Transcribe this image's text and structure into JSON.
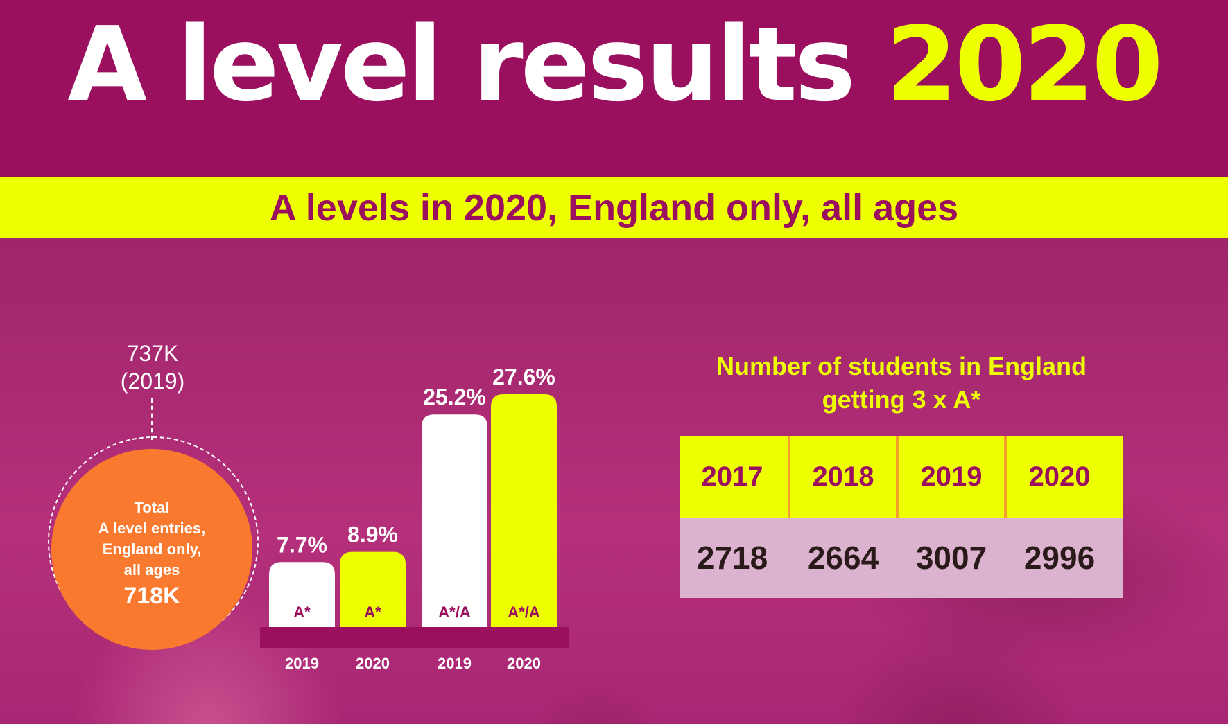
{
  "header": {
    "title_main": "A level results",
    "title_year": "2020",
    "subtitle": "A levels in 2020, England only, all ages"
  },
  "entries": {
    "previous_value": "737K",
    "previous_year": "(2019)",
    "label_line1": "Total",
    "label_line2": "A level entries,",
    "label_line3": "England only,",
    "label_line4": "all ages",
    "current_value": "718K"
  },
  "colors": {
    "magenta": "#9b0f5f",
    "yellow": "#eeff00",
    "orange": "#f97a2e",
    "white": "#ffffff"
  },
  "chart_data": [
    {
      "type": "bar",
      "bars": [
        {
          "grade": "A*",
          "year": "2019",
          "value": 7.7,
          "label": "7.7%",
          "color": "#ffffff"
        },
        {
          "grade": "A*",
          "year": "2020",
          "value": 8.9,
          "label": "8.9%",
          "color": "#eeff00"
        },
        {
          "grade": "A*/A",
          "year": "2019",
          "value": 25.2,
          "label": "25.2%",
          "color": "#ffffff"
        },
        {
          "grade": "A*/A",
          "year": "2020",
          "value": 27.6,
          "label": "27.6%",
          "color": "#eeff00"
        }
      ],
      "ylim": [
        0,
        27.6
      ]
    },
    {
      "type": "table",
      "title": "Number of students in England getting 3 x A*",
      "columns": [
        "2017",
        "2018",
        "2019",
        "2020"
      ],
      "values": [
        2718,
        2664,
        3007,
        2996
      ]
    }
  ]
}
